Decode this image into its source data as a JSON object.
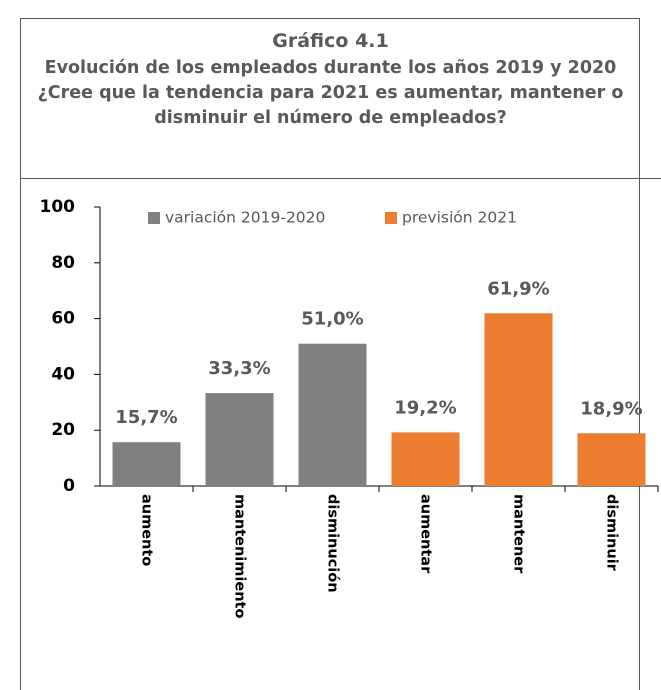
{
  "chart_data": {
    "type": "bar",
    "title": "Gráfico 4.1",
    "subtitle": "Evolución de los empleados durante los años 2019 y 2020 ¿Cree que la tendencia para 2021 es aumentar, mantener o disminuir el número de empleados?",
    "categories": [
      "aumento",
      "mantenimiento",
      "disminución",
      "aumentar",
      "mantener",
      "disminuir"
    ],
    "series": [
      {
        "name": "variación 2019-2020",
        "color": "#808080",
        "values": [
          15.7,
          33.3,
          51.0,
          null,
          null,
          null
        ],
        "value_labels": [
          "15,7%",
          "33,3%",
          "51,0%",
          null,
          null,
          null
        ]
      },
      {
        "name": "previsión 2021",
        "color": "#ed7d31",
        "values": [
          null,
          null,
          null,
          19.2,
          61.9,
          18.9
        ],
        "value_labels": [
          null,
          null,
          null,
          "19,2%",
          "61,9%",
          "18,9%"
        ]
      }
    ],
    "ylim": [
      0,
      100
    ],
    "yticks": [
      0,
      20,
      40,
      60,
      80,
      100
    ],
    "grid": false,
    "legend": "top"
  }
}
